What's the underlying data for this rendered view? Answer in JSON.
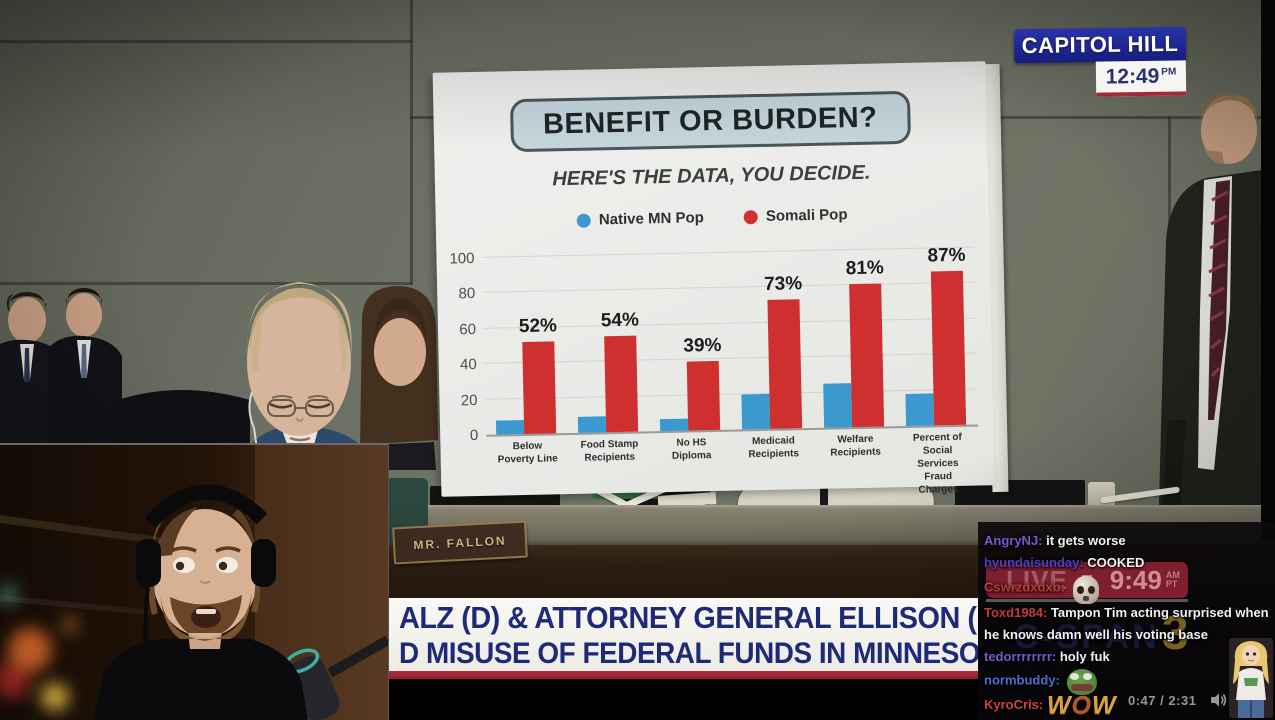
{
  "broadcast": {
    "location_badge": "CAPITOL HILL",
    "clock_time": "12:49",
    "clock_suffix": "PM",
    "nameplate": "MR. FALLON",
    "chyron_line1": "ALZ (D) & ATTORNEY GENERAL ELLISON (D",
    "chyron_line2": "D MISUSE OF FEDERAL FUNDS IN MINNESOT"
  },
  "chart_data": {
    "type": "bar",
    "title": "BENEFIT OR BURDEN?",
    "subtitle": "HERE'S THE DATA, YOU DECIDE.",
    "categories": [
      "Below Poverty Line",
      "Food Stamp Recipients",
      "No HS Diploma",
      "Medicaid Recipients",
      "Welfare Recipients",
      "Percent of Social Services Fraud Charges"
    ],
    "series": [
      {
        "name": "Native MN Pop",
        "color": "#3b99cf",
        "values": [
          8,
          9,
          7,
          20,
          25,
          18
        ]
      },
      {
        "name": "Somali Pop",
        "color": "#d02f2f",
        "values": [
          52,
          54,
          39,
          73,
          81,
          87
        ]
      }
    ],
    "value_labels": [
      "52%",
      "54%",
      "39%",
      "73%",
      "81%",
      "87%"
    ],
    "xlabel": "",
    "ylabel": "",
    "ylim": [
      0,
      100
    ],
    "yticks": [
      0,
      20,
      40,
      60,
      80,
      100
    ],
    "grid": true,
    "legend_position": "top"
  },
  "player": {
    "live_label": "LIVE",
    "live_time": "9:49",
    "live_suffix_top": "AM",
    "live_suffix_bottom": "PT",
    "watermark": "C-SPAN",
    "watermark_digit": "3",
    "elapsed": "0:47",
    "time_separator": "/",
    "duration": "2:31"
  },
  "chat": {
    "messages": [
      {
        "user": "AngryNJ",
        "color": "#7a58cf",
        "text": "it gets worse",
        "emote": ""
      },
      {
        "user": "hyundaisunday",
        "color": "#4b3fc4",
        "text": "COOKED",
        "emote": ""
      },
      {
        "user": "Cswrzdxdxb",
        "color": "#c23b3b",
        "text": "",
        "emote": "skull"
      },
      {
        "user": "Toxd1984",
        "color": "#c23b3b",
        "text": "Tampon Tim acting surprised when he knows damn well his voting base",
        "emote": ""
      },
      {
        "user": "tedorrrrrrrr",
        "color": "#7a58cf",
        "text": "holy fuk",
        "emote": ""
      },
      {
        "user": "normbuddy",
        "color": "#4c6fd1",
        "text": "",
        "emote": "pepe"
      },
      {
        "user": "KyroCris",
        "color": "#d34040",
        "text": "WOW",
        "emote": "wow"
      }
    ]
  }
}
